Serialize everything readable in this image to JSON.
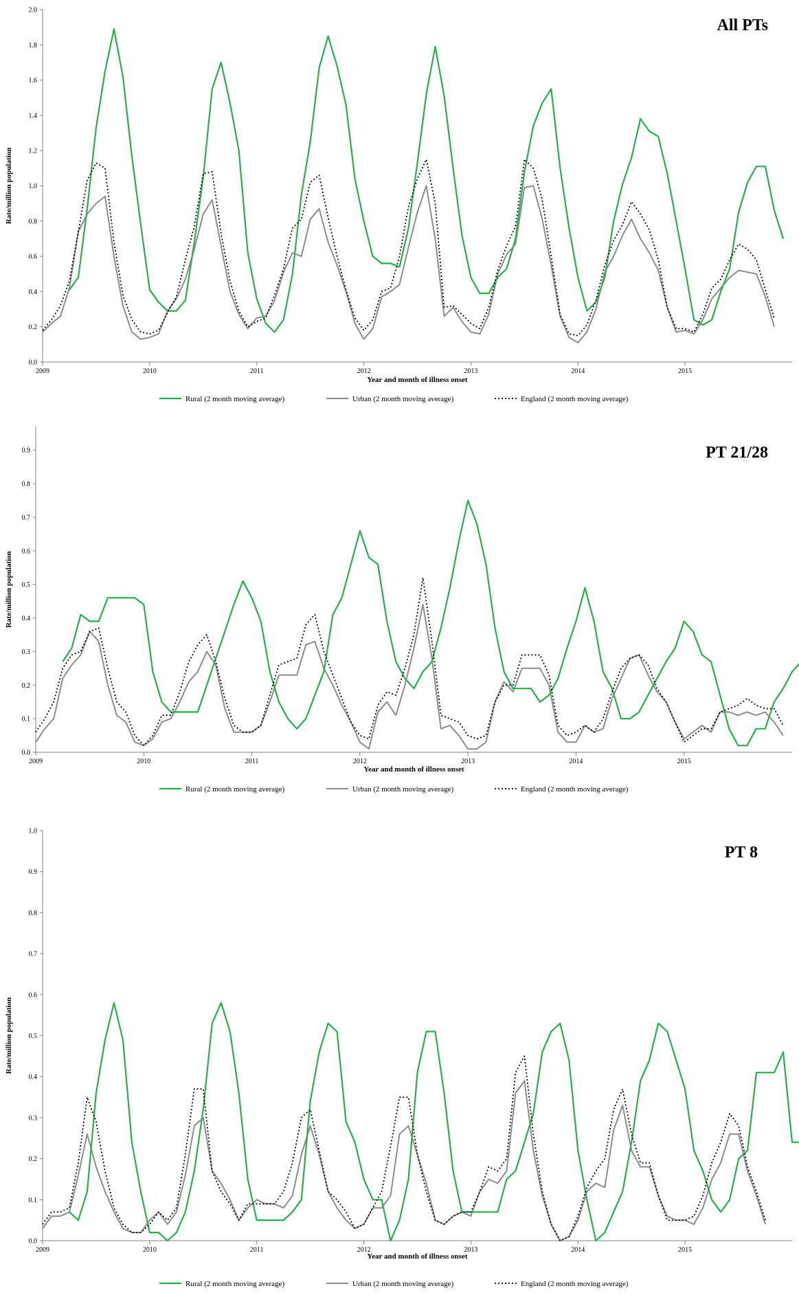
{
  "legend": [
    {
      "key": "rural",
      "label": "Rural (2 month moving average)",
      "color": "#22b14c",
      "style": "solid"
    },
    {
      "key": "urban",
      "label": "Urban (2 month moving average)",
      "color": "#8c8c8c",
      "style": "solid"
    },
    {
      "key": "england",
      "label": "England (2 month moving average)",
      "color": "#000000",
      "style": "dotted"
    }
  ],
  "chart_data": [
    {
      "type": "line",
      "title": "All PTs",
      "xlabel": "Year and month of illness onset",
      "ylabel": "Rate/million population",
      "ylim": [
        0,
        2.0
      ],
      "xlim": [
        2009,
        2016
      ],
      "yticks": [
        "0.0",
        "0.2",
        "0.4",
        "0.6",
        "0.8",
        "1.0",
        "1.2",
        "1.4",
        "1.6",
        "1.8",
        "2.0"
      ],
      "xticks": [
        "2009",
        "2010",
        "2011",
        "2012",
        "2013",
        "2014",
        "2015"
      ],
      "grid": false,
      "legend_position": "bottom",
      "series": [
        {
          "name": "Rural (2 month moving average)",
          "x_start": 2009.25,
          "values": [
            0.41,
            0.48,
            0.87,
            1.33,
            1.65,
            1.89,
            1.62,
            1.17,
            0.78,
            0.41,
            0.34,
            0.29,
            0.29,
            0.35,
            0.68,
            1.05,
            1.55,
            1.7,
            1.47,
            1.2,
            0.62,
            0.36,
            0.22,
            0.17,
            0.24,
            0.5,
            0.95,
            1.25,
            1.67,
            1.85,
            1.68,
            1.46,
            1.04,
            0.8,
            0.6,
            0.56,
            0.56,
            0.54,
            0.76,
            1.13,
            1.52,
            1.79,
            1.51,
            1.1,
            0.72,
            0.48,
            0.39,
            0.39,
            0.48,
            0.53,
            0.7,
            1.08,
            1.34,
            1.47,
            1.55,
            1.1,
            0.76,
            0.48,
            0.29,
            0.34,
            0.48,
            0.8,
            1.01,
            1.16,
            1.38,
            1.31,
            1.28,
            1.07,
            0.8,
            0.53,
            0.24,
            0.21,
            0.24,
            0.4,
            0.53,
            0.85,
            1.02,
            1.11,
            1.11,
            0.86,
            0.7
          ]
        },
        {
          "name": "Urban (2 month moving average)",
          "x_start": 2009.0,
          "values": [
            0.17,
            0.22,
            0.26,
            0.42,
            0.74,
            0.84,
            0.9,
            0.94,
            0.6,
            0.32,
            0.17,
            0.13,
            0.14,
            0.16,
            0.29,
            0.36,
            0.47,
            0.64,
            0.84,
            0.92,
            0.66,
            0.4,
            0.27,
            0.19,
            0.25,
            0.26,
            0.35,
            0.51,
            0.62,
            0.6,
            0.81,
            0.87,
            0.68,
            0.55,
            0.4,
            0.22,
            0.13,
            0.19,
            0.37,
            0.4,
            0.44,
            0.65,
            0.85,
            1.0,
            0.7,
            0.26,
            0.31,
            0.23,
            0.17,
            0.16,
            0.27,
            0.5,
            0.61,
            0.67,
            0.99,
            1.0,
            0.81,
            0.55,
            0.26,
            0.14,
            0.11,
            0.17,
            0.3,
            0.51,
            0.6,
            0.72,
            0.81,
            0.7,
            0.62,
            0.52,
            0.31,
            0.17,
            0.18,
            0.16,
            0.24,
            0.36,
            0.42,
            0.48,
            0.52,
            0.51,
            0.5,
            0.37,
            0.2
          ]
        },
        {
          "name": "England (2 month moving average)",
          "x_start": 2009.0,
          "values": [
            0.18,
            0.24,
            0.32,
            0.46,
            0.74,
            1.03,
            1.13,
            1.1,
            0.68,
            0.38,
            0.24,
            0.17,
            0.16,
            0.18,
            0.28,
            0.37,
            0.58,
            0.77,
            1.07,
            1.08,
            0.73,
            0.46,
            0.29,
            0.2,
            0.23,
            0.25,
            0.38,
            0.53,
            0.76,
            0.81,
            1.02,
            1.06,
            0.82,
            0.6,
            0.41,
            0.25,
            0.18,
            0.24,
            0.4,
            0.42,
            0.6,
            0.88,
            1.04,
            1.15,
            0.9,
            0.31,
            0.32,
            0.27,
            0.22,
            0.19,
            0.31,
            0.52,
            0.66,
            0.77,
            1.15,
            1.1,
            0.92,
            0.6,
            0.27,
            0.16,
            0.15,
            0.21,
            0.35,
            0.55,
            0.69,
            0.78,
            0.91,
            0.84,
            0.75,
            0.58,
            0.31,
            0.19,
            0.19,
            0.17,
            0.27,
            0.42,
            0.47,
            0.58,
            0.67,
            0.64,
            0.58,
            0.41,
            0.25
          ]
        }
      ]
    },
    {
      "type": "line",
      "title": "PT 21/28",
      "xlabel": "Year and month of illness onset",
      "ylabel": "Rate/million population",
      "ylim": [
        0,
        0.97
      ],
      "xlim": [
        2009,
        2016
      ],
      "yticks": [
        "0.0",
        "0.1",
        "0.2",
        "0.3",
        "0.4",
        "0.5",
        "0.6",
        "0.7",
        "0.8",
        "0.9"
      ],
      "xticks": [
        "2009",
        "2010",
        "2011",
        "2012",
        "2013",
        "2014",
        "2015"
      ],
      "grid": false,
      "legend_position": "bottom",
      "series": [
        {
          "name": "Rural (2 month moving average)",
          "x_start": 2009.25,
          "values": [
            0.27,
            0.31,
            0.41,
            0.39,
            0.39,
            0.46,
            0.46,
            0.46,
            0.46,
            0.44,
            0.24,
            0.15,
            0.12,
            0.12,
            0.12,
            0.12,
            0.2,
            0.28,
            0.36,
            0.44,
            0.51,
            0.46,
            0.39,
            0.24,
            0.15,
            0.1,
            0.07,
            0.1,
            0.17,
            0.24,
            0.41,
            0.46,
            0.56,
            0.66,
            0.58,
            0.56,
            0.39,
            0.27,
            0.22,
            0.19,
            0.24,
            0.27,
            0.37,
            0.49,
            0.63,
            0.75,
            0.68,
            0.56,
            0.37,
            0.24,
            0.19,
            0.19,
            0.19,
            0.15,
            0.17,
            0.22,
            0.31,
            0.39,
            0.49,
            0.39,
            0.24,
            0.19,
            0.1,
            0.1,
            0.12,
            0.17,
            0.22,
            0.27,
            0.31,
            0.39,
            0.36,
            0.29,
            0.27,
            0.17,
            0.07,
            0.02,
            0.02,
            0.07,
            0.07,
            0.15,
            0.19,
            0.24,
            0.27,
            0.24,
            0.27,
            0.19
          ]
        },
        {
          "name": "Urban (2 month moving average)",
          "x_start": 2009.0,
          "values": [
            0.03,
            0.07,
            0.1,
            0.22,
            0.26,
            0.29,
            0.36,
            0.33,
            0.2,
            0.11,
            0.09,
            0.03,
            0.02,
            0.04,
            0.09,
            0.1,
            0.15,
            0.21,
            0.24,
            0.3,
            0.26,
            0.13,
            0.06,
            0.06,
            0.06,
            0.08,
            0.15,
            0.23,
            0.23,
            0.23,
            0.32,
            0.33,
            0.25,
            0.2,
            0.14,
            0.09,
            0.03,
            0.01,
            0.12,
            0.15,
            0.11,
            0.2,
            0.31,
            0.44,
            0.28,
            0.07,
            0.08,
            0.05,
            0.01,
            0.01,
            0.03,
            0.15,
            0.21,
            0.18,
            0.25,
            0.25,
            0.25,
            0.2,
            0.06,
            0.03,
            0.03,
            0.08,
            0.06,
            0.07,
            0.16,
            0.22,
            0.28,
            0.29,
            0.23,
            0.18,
            0.15,
            0.09,
            0.04,
            0.06,
            0.08,
            0.06,
            0.12,
            0.12,
            0.11,
            0.12,
            0.11,
            0.12,
            0.09,
            0.05
          ]
        },
        {
          "name": "England (2 month moving average)",
          "x_start": 2009.0,
          "values": [
            0.06,
            0.1,
            0.15,
            0.25,
            0.29,
            0.3,
            0.36,
            0.37,
            0.25,
            0.15,
            0.12,
            0.05,
            0.02,
            0.05,
            0.11,
            0.11,
            0.18,
            0.27,
            0.32,
            0.35,
            0.27,
            0.16,
            0.08,
            0.06,
            0.06,
            0.08,
            0.17,
            0.26,
            0.27,
            0.28,
            0.38,
            0.41,
            0.3,
            0.23,
            0.16,
            0.09,
            0.05,
            0.04,
            0.14,
            0.18,
            0.17,
            0.25,
            0.35,
            0.52,
            0.33,
            0.11,
            0.1,
            0.09,
            0.05,
            0.04,
            0.05,
            0.15,
            0.2,
            0.2,
            0.29,
            0.29,
            0.29,
            0.23,
            0.08,
            0.05,
            0.06,
            0.08,
            0.06,
            0.1,
            0.18,
            0.25,
            0.28,
            0.29,
            0.26,
            0.19,
            0.15,
            0.09,
            0.03,
            0.05,
            0.07,
            0.07,
            0.12,
            0.13,
            0.14,
            0.16,
            0.14,
            0.13,
            0.13,
            0.08
          ]
        }
      ]
    },
    {
      "type": "line",
      "title": "PT 8",
      "xlabel": "Year and month of illness onset",
      "ylabel": "Rate/million population",
      "ylim": [
        0,
        1.0
      ],
      "xlim": [
        2009,
        2016
      ],
      "yticks": [
        "0.0",
        "0.1",
        "0.2",
        "0.3",
        "0.4",
        "0.5",
        "0.6",
        "0.7",
        "0.8",
        "0.9",
        "1.0"
      ],
      "xticks": [
        "2009",
        "2010",
        "2011",
        "2012",
        "2013",
        "2014",
        "2015"
      ],
      "grid": false,
      "legend_position": "bottom",
      "series": [
        {
          "name": "Rural (2 month moving average)",
          "x_start": 2009.25,
          "values": [
            0.07,
            0.05,
            0.12,
            0.36,
            0.49,
            0.58,
            0.49,
            0.24,
            0.12,
            0.02,
            0.02,
            0.0,
            0.02,
            0.07,
            0.17,
            0.32,
            0.53,
            0.58,
            0.51,
            0.36,
            0.15,
            0.05,
            0.05,
            0.05,
            0.05,
            0.07,
            0.1,
            0.34,
            0.46,
            0.53,
            0.51,
            0.29,
            0.24,
            0.15,
            0.1,
            0.1,
            0.0,
            0.05,
            0.15,
            0.41,
            0.51,
            0.51,
            0.36,
            0.17,
            0.07,
            0.07,
            0.07,
            0.07,
            0.07,
            0.15,
            0.17,
            0.24,
            0.31,
            0.46,
            0.51,
            0.53,
            0.44,
            0.22,
            0.1,
            0.0,
            0.02,
            0.07,
            0.12,
            0.24,
            0.39,
            0.44,
            0.53,
            0.51,
            0.44,
            0.37,
            0.22,
            0.17,
            0.1,
            0.07,
            0.1,
            0.2,
            0.22,
            0.41,
            0.41,
            0.41,
            0.46,
            0.24,
            0.24,
            0.24
          ]
        },
        {
          "name": "Urban (2 month moving average)",
          "x_start": 2009.0,
          "values": [
            0.03,
            0.06,
            0.06,
            0.07,
            0.16,
            0.26,
            0.18,
            0.12,
            0.07,
            0.03,
            0.02,
            0.02,
            0.05,
            0.07,
            0.04,
            0.07,
            0.16,
            0.28,
            0.3,
            0.17,
            0.14,
            0.1,
            0.05,
            0.08,
            0.1,
            0.09,
            0.09,
            0.08,
            0.11,
            0.21,
            0.28,
            0.21,
            0.12,
            0.08,
            0.05,
            0.03,
            0.04,
            0.08,
            0.08,
            0.11,
            0.26,
            0.28,
            0.21,
            0.14,
            0.05,
            0.04,
            0.06,
            0.07,
            0.06,
            0.12,
            0.15,
            0.14,
            0.17,
            0.36,
            0.39,
            0.22,
            0.11,
            0.04,
            0.0,
            0.01,
            0.05,
            0.12,
            0.14,
            0.13,
            0.27,
            0.33,
            0.22,
            0.18,
            0.18,
            0.11,
            0.06,
            0.05,
            0.05,
            0.04,
            0.08,
            0.15,
            0.19,
            0.26,
            0.26,
            0.17,
            0.11,
            0.04
          ]
        },
        {
          "name": "England (2 month moving average)",
          "x_start": 2009.0,
          "values": [
            0.04,
            0.07,
            0.07,
            0.08,
            0.19,
            0.35,
            0.29,
            0.17,
            0.08,
            0.04,
            0.02,
            0.02,
            0.04,
            0.07,
            0.05,
            0.08,
            0.21,
            0.37,
            0.37,
            0.17,
            0.12,
            0.09,
            0.05,
            0.09,
            0.09,
            0.09,
            0.09,
            0.12,
            0.19,
            0.3,
            0.32,
            0.22,
            0.12,
            0.1,
            0.07,
            0.03,
            0.04,
            0.08,
            0.12,
            0.23,
            0.35,
            0.35,
            0.21,
            0.12,
            0.05,
            0.04,
            0.06,
            0.07,
            0.07,
            0.12,
            0.18,
            0.17,
            0.2,
            0.41,
            0.45,
            0.26,
            0.12,
            0.04,
            0.0,
            0.01,
            0.06,
            0.13,
            0.17,
            0.2,
            0.32,
            0.37,
            0.26,
            0.19,
            0.19,
            0.11,
            0.05,
            0.05,
            0.05,
            0.06,
            0.11,
            0.19,
            0.24,
            0.31,
            0.28,
            0.18,
            0.12,
            0.05
          ]
        }
      ]
    }
  ]
}
